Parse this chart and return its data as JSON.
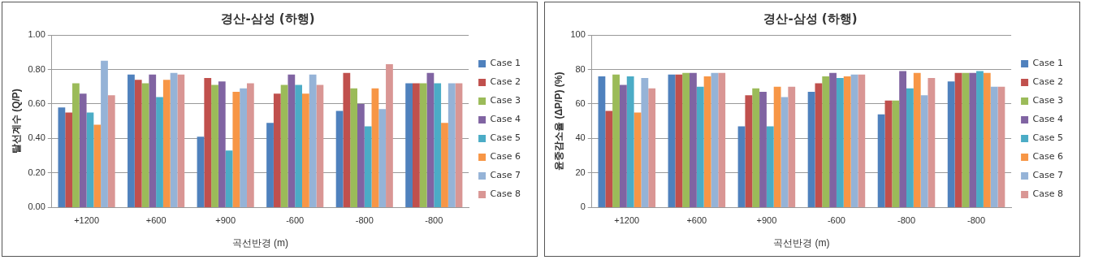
{
  "chart_data": [
    {
      "type": "bar",
      "title": "경산-삼성 (하행)",
      "xlabel": "곡선반경 (m)",
      "ylabel": "탈선계수 (Q/P)",
      "categories": [
        "+1200",
        "+600",
        "+900",
        "-600",
        "-800",
        "-800"
      ],
      "series": [
        {
          "name": "Case 1",
          "color": "#4f81bd",
          "values": [
            0.58,
            0.77,
            0.41,
            0.49,
            0.56,
            0.72
          ]
        },
        {
          "name": "Case 2",
          "color": "#c0504d",
          "values": [
            0.55,
            0.74,
            0.75,
            0.66,
            0.78,
            0.72
          ]
        },
        {
          "name": "Case 3",
          "color": "#9bbb59",
          "values": [
            0.72,
            0.72,
            0.71,
            0.71,
            0.69,
            0.72
          ]
        },
        {
          "name": "Case 4",
          "color": "#8064a2",
          "values": [
            0.66,
            0.77,
            0.73,
            0.77,
            0.6,
            0.78
          ]
        },
        {
          "name": "Case 5",
          "color": "#4bacc6",
          "values": [
            0.55,
            0.64,
            0.33,
            0.71,
            0.47,
            0.72
          ]
        },
        {
          "name": "Case 6",
          "color": "#f79646",
          "values": [
            0.48,
            0.74,
            0.67,
            0.66,
            0.69,
            0.49
          ]
        },
        {
          "name": "Case 7",
          "color": "#95b3d7",
          "values": [
            0.85,
            0.78,
            0.69,
            0.77,
            0.57,
            0.72
          ]
        },
        {
          "name": "Case 8",
          "color": "#d99694",
          "values": [
            0.65,
            0.77,
            0.72,
            0.71,
            0.83,
            0.72
          ]
        }
      ],
      "ylim": [
        0,
        1
      ],
      "yticks": [
        {
          "value": 0,
          "label": "0.00"
        },
        {
          "value": 0.2,
          "label": "0.20"
        },
        {
          "value": 0.4,
          "label": "0.40"
        },
        {
          "value": 0.6,
          "label": "0.60"
        },
        {
          "value": 0.8,
          "label": "0.80"
        },
        {
          "value": 1,
          "label": "1.00"
        }
      ],
      "grid": "y",
      "legend": "right"
    },
    {
      "type": "bar",
      "title": "경산-삼성 (하행)",
      "xlabel": "곡선반경 (m)",
      "ylabel": "윤중감소율 (ΔP/P) (%)",
      "categories": [
        "+1200",
        "+600",
        "+900",
        "-600",
        "-800",
        "-800"
      ],
      "series": [
        {
          "name": "Case 1",
          "color": "#4f81bd",
          "values": [
            76,
            77,
            47,
            67,
            54,
            73
          ]
        },
        {
          "name": "Case 2",
          "color": "#c0504d",
          "values": [
            56,
            77,
            65,
            72,
            62,
            78
          ]
        },
        {
          "name": "Case 3",
          "color": "#9bbb59",
          "values": [
            77,
            78,
            69,
            76,
            62,
            78
          ]
        },
        {
          "name": "Case 4",
          "color": "#8064a2",
          "values": [
            71,
            78,
            67,
            78,
            79,
            78
          ]
        },
        {
          "name": "Case 5",
          "color": "#4bacc6",
          "values": [
            76,
            70,
            47,
            75,
            69,
            79
          ]
        },
        {
          "name": "Case 6",
          "color": "#f79646",
          "values": [
            55,
            76,
            70,
            76,
            78,
            78
          ]
        },
        {
          "name": "Case 7",
          "color": "#95b3d7",
          "values": [
            75,
            78,
            64,
            77,
            65,
            70
          ]
        },
        {
          "name": "Case 8",
          "color": "#d99694",
          "values": [
            69,
            78,
            70,
            77,
            75,
            70
          ]
        }
      ],
      "ylim": [
        0,
        100
      ],
      "yticks": [
        0,
        20,
        40,
        60,
        80,
        100
      ],
      "grid": "y",
      "legend": "right"
    }
  ]
}
